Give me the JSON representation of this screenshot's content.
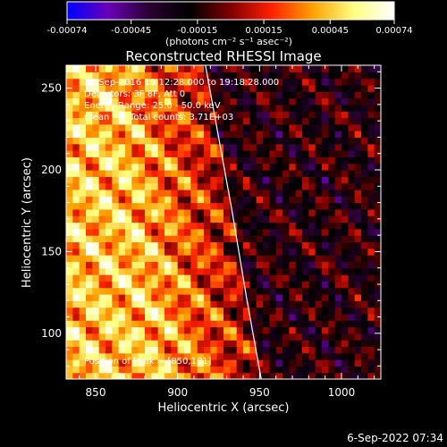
{
  "colorbar": {
    "tick_labels": [
      "-0.00074",
      "-0.00045",
      "-0.00015",
      "0.00015",
      "0.00045",
      "0.00074"
    ],
    "unit_text": "(photons cm⁻² s⁻¹ asec⁻²)",
    "range": [
      -0.00074,
      0.00074
    ],
    "colors": [
      "#0000ff",
      "#6a00b8",
      "#2a0030",
      "#000000",
      "#800000",
      "#ff2000",
      "#ffa000",
      "#ffff80",
      "#ffffff"
    ]
  },
  "chart_data": {
    "type": "heatmap",
    "title": "Reconstructed RHESSI Image",
    "xlabel": "Heliocentric X (arcsec)",
    "ylabel": "Heliocentric Y (arcsec)",
    "xlim": [
      832,
      1024
    ],
    "ylim": [
      72,
      264
    ],
    "x_ticks": [
      850,
      900,
      950,
      1000
    ],
    "y_ticks": [
      100,
      150,
      200,
      250
    ],
    "limb_curve": {
      "x": [
        917,
        925,
        933,
        942,
        951
      ],
      "y": [
        264,
        220,
        176,
        122,
        72
      ]
    },
    "peak": [
      850,
      181
    ],
    "annotations": {
      "time": "21-Sep-2016 19:12:28.000 to 19:18:28.000",
      "detectors": "Detectors: 3F 8F, Att 0",
      "energy": "Energy Range: 25.0 - 50.0 keV",
      "method": "Clean",
      "counts": "Total counts: 3.71E+03",
      "peak": "Position of Peak = [850,181]"
    }
  },
  "footer": {
    "timestamp": "6-Sep-2022 07:34"
  }
}
